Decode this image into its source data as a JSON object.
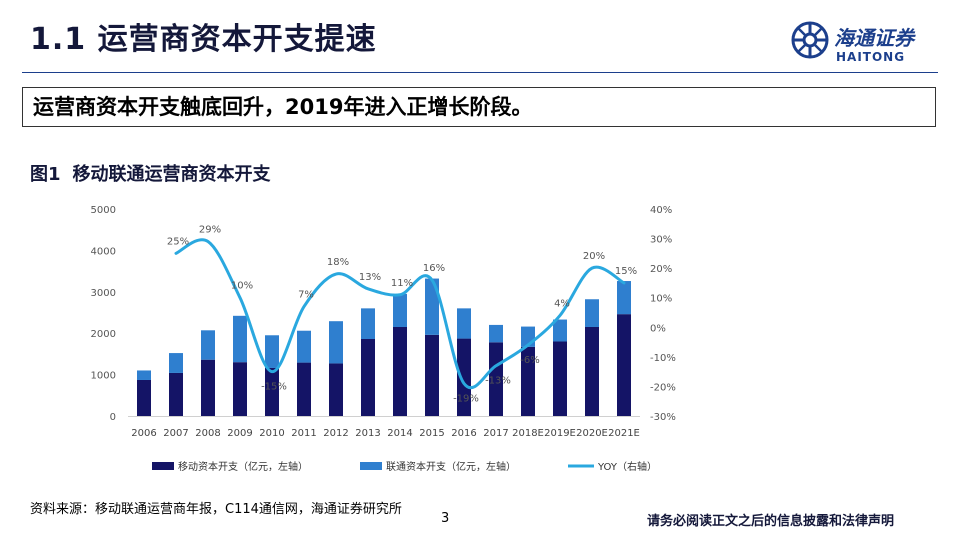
{
  "header": {
    "title": "1.1 运营商资本开支提速",
    "logo_cn": "海通证券",
    "logo_en": "HAITONG"
  },
  "summary": "运营商资本开支触底回升，2019年进入正增长阶段。",
  "figure": {
    "number": "图1",
    "caption": "移动联通运营商资本开支"
  },
  "chart_data": {
    "type": "bar",
    "stacked": true,
    "categories": [
      "2006",
      "2007",
      "2008",
      "2009",
      "2010",
      "2011",
      "2012",
      "2013",
      "2014",
      "2015",
      "2016",
      "2017",
      "2018E",
      "2019E",
      "2020E",
      "2021E"
    ],
    "series": [
      {
        "name": "移动资本开支（亿元，左轴）",
        "color": "#141466",
        "values": [
          870,
          1040,
          1360,
          1300,
          1160,
          1290,
          1270,
          1860,
          2150,
          1960,
          1870,
          1780,
          1670,
          1800,
          2150,
          2460
        ]
      },
      {
        "name": "联通资本开支（亿元，左轴）",
        "color": "#2f7fcf",
        "values": [
          230,
          480,
          710,
          1120,
          790,
          770,
          1020,
          740,
          800,
          1360,
          730,
          420,
          490,
          530,
          670,
          800
        ]
      },
      {
        "name": "YOY",
        "axis": "right",
        "color": "#2aa8df",
        "type": "line",
        "values": [
          null,
          25,
          29,
          10,
          -15,
          7,
          18,
          13,
          11,
          16,
          -19,
          -13,
          -6,
          4,
          20,
          15
        ],
        "labels": [
          "",
          "25%",
          "29%",
          "10%",
          "-15%",
          "7%",
          "18%",
          "13%",
          "11%",
          "16%",
          "-19%",
          "-13%",
          "-6%",
          "4%",
          "20%",
          "15%"
        ]
      }
    ],
    "yleft": {
      "min": 0,
      "max": 5000,
      "ticks": [
        "0",
        "1000",
        "2000",
        "3000",
        "4000",
        "5000"
      ]
    },
    "yright": {
      "min": -30,
      "max": 40,
      "ticks": [
        "-30%",
        "-20%",
        "-10%",
        "0%",
        "10%",
        "20%",
        "30%",
        "40%"
      ]
    },
    "legend": [
      {
        "label": "移动资本开支（亿元，左轴）",
        "kind": "box",
        "color": "#141466"
      },
      {
        "label": "联通资本开支（亿元，左轴）",
        "kind": "box",
        "color": "#2f7fcf"
      },
      {
        "label": "YOY",
        "suffix": "（右轴）",
        "kind": "line",
        "color": "#2aa8df"
      }
    ]
  },
  "source": "资料来源：移动联通运营商年报，C114通信网，海通证券研究所",
  "page_number": "3",
  "disclaimer": "请务必阅读正文之后的信息披露和法律声明"
}
